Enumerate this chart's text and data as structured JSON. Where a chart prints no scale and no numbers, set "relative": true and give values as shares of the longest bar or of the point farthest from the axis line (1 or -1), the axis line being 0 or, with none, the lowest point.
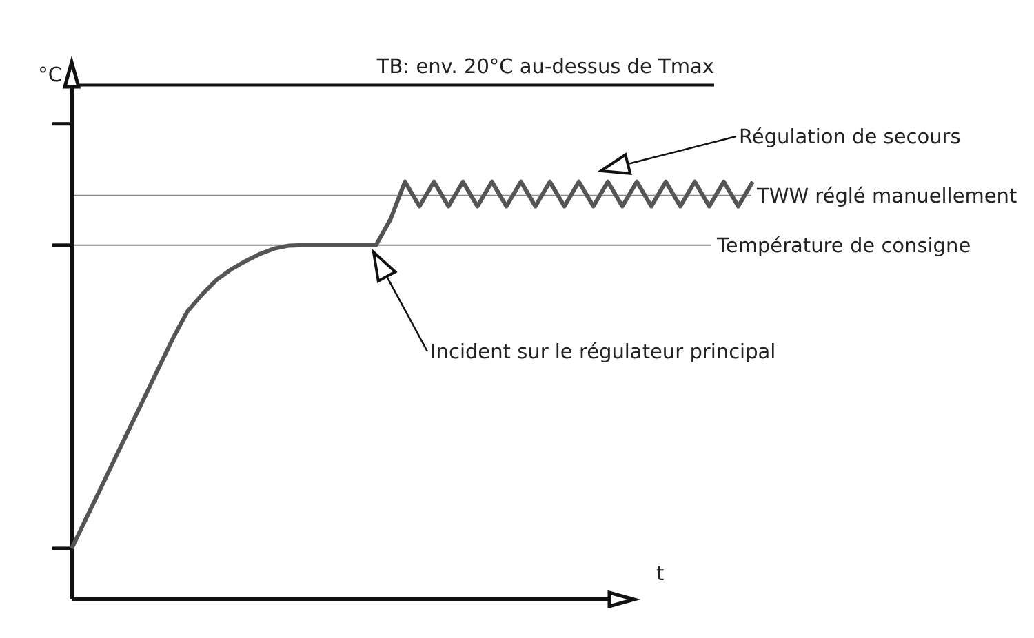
{
  "chart_data": {
    "type": "line",
    "relative": true,
    "xlabel": "t",
    "ylabel": "°C",
    "categories": [
      null,
      null,
      null,
      null,
      null,
      null,
      null,
      null,
      null,
      null,
      null,
      null,
      null,
      null,
      null,
      null,
      null,
      null,
      null,
      null,
      null,
      null,
      null,
      null,
      null,
      null,
      null,
      null,
      null,
      null,
      null,
      null,
      null,
      null,
      null,
      null,
      null,
      null,
      null,
      null,
      null,
      null,
      null,
      null,
      null,
      null,
      null,
      null
    ],
    "series": [
      {
        "color": "#555555",
        "values": [
          0.122,
          0.194,
          0.266,
          0.338,
          0.41,
          0.482,
          0.554,
          0.626,
          0.69,
          0.73,
          0.765,
          0.79,
          0.81,
          0.827,
          0.84,
          0.847,
          0.848,
          0.848,
          0.848,
          0.848,
          0.848,
          0.848,
          0.91,
          1,
          0.941,
          1,
          0.941,
          1,
          0.941,
          1,
          0.941,
          1,
          0.941,
          1,
          0.941,
          1,
          0.941,
          1,
          0.941,
          1,
          0.941,
          1,
          0.941,
          1,
          0.941,
          1,
          0.941,
          1
        ]
      }
    ],
    "ref_lines": [
      {
        "axis": "y",
        "value": 1.231,
        "label": "TB: env. 20°C au-dessus de Tmax",
        "color": "#111111"
      },
      {
        "axis": "y",
        "value": 0.967,
        "label": "TWW réglé manuellement",
        "color": "#888888"
      },
      {
        "axis": "y",
        "value": 0.848,
        "label": "Température de consigne",
        "color": "#888888"
      }
    ],
    "annotations": [
      "Régulation de secours",
      "Incident sur le régulateur principal"
    ],
    "marker": "none",
    "line_style": "solid"
  }
}
